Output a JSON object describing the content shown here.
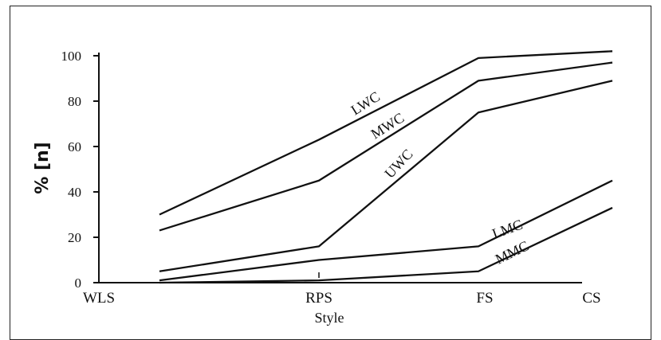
{
  "chart_data": {
    "type": "line",
    "categories": [
      "WLS",
      "RPS",
      "FS",
      "CS"
    ],
    "xlabel": "Style",
    "ylabel": "% [n]",
    "ylim": [
      0,
      100
    ],
    "yticks": [
      "0",
      "20",
      "40",
      "60",
      "80",
      "100"
    ],
    "grid": false,
    "series": [
      {
        "name": "LWC",
        "values": [
          30,
          63,
          99,
          102
        ]
      },
      {
        "name": "MWC",
        "values": [
          23,
          45,
          89,
          97
        ]
      },
      {
        "name": "UWC",
        "values": [
          5,
          16,
          75,
          89
        ]
      },
      {
        "name": "LMC",
        "values": [
          1,
          10,
          16,
          45
        ]
      },
      {
        "name": "MMC",
        "values": [
          0,
          1,
          5,
          33
        ]
      }
    ]
  }
}
